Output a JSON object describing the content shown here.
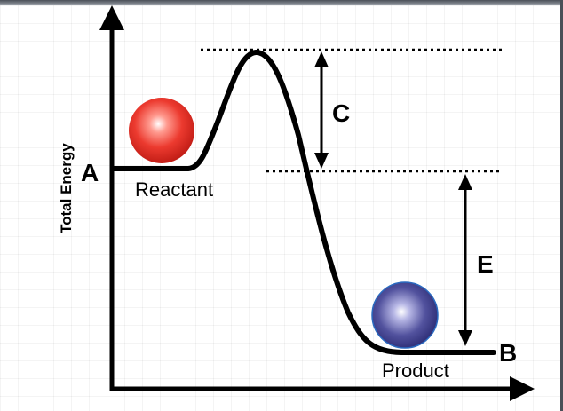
{
  "ylabel": "Total Energy",
  "points": {
    "a": "A",
    "b": "B"
  },
  "measures": {
    "c": "C",
    "e": "E"
  },
  "states": {
    "reactant": "Reactant",
    "product": "Product"
  },
  "colors": {
    "reactant_ball": "#e8302a",
    "product_ball": "#3a3a9a",
    "curve": "#000000"
  }
}
